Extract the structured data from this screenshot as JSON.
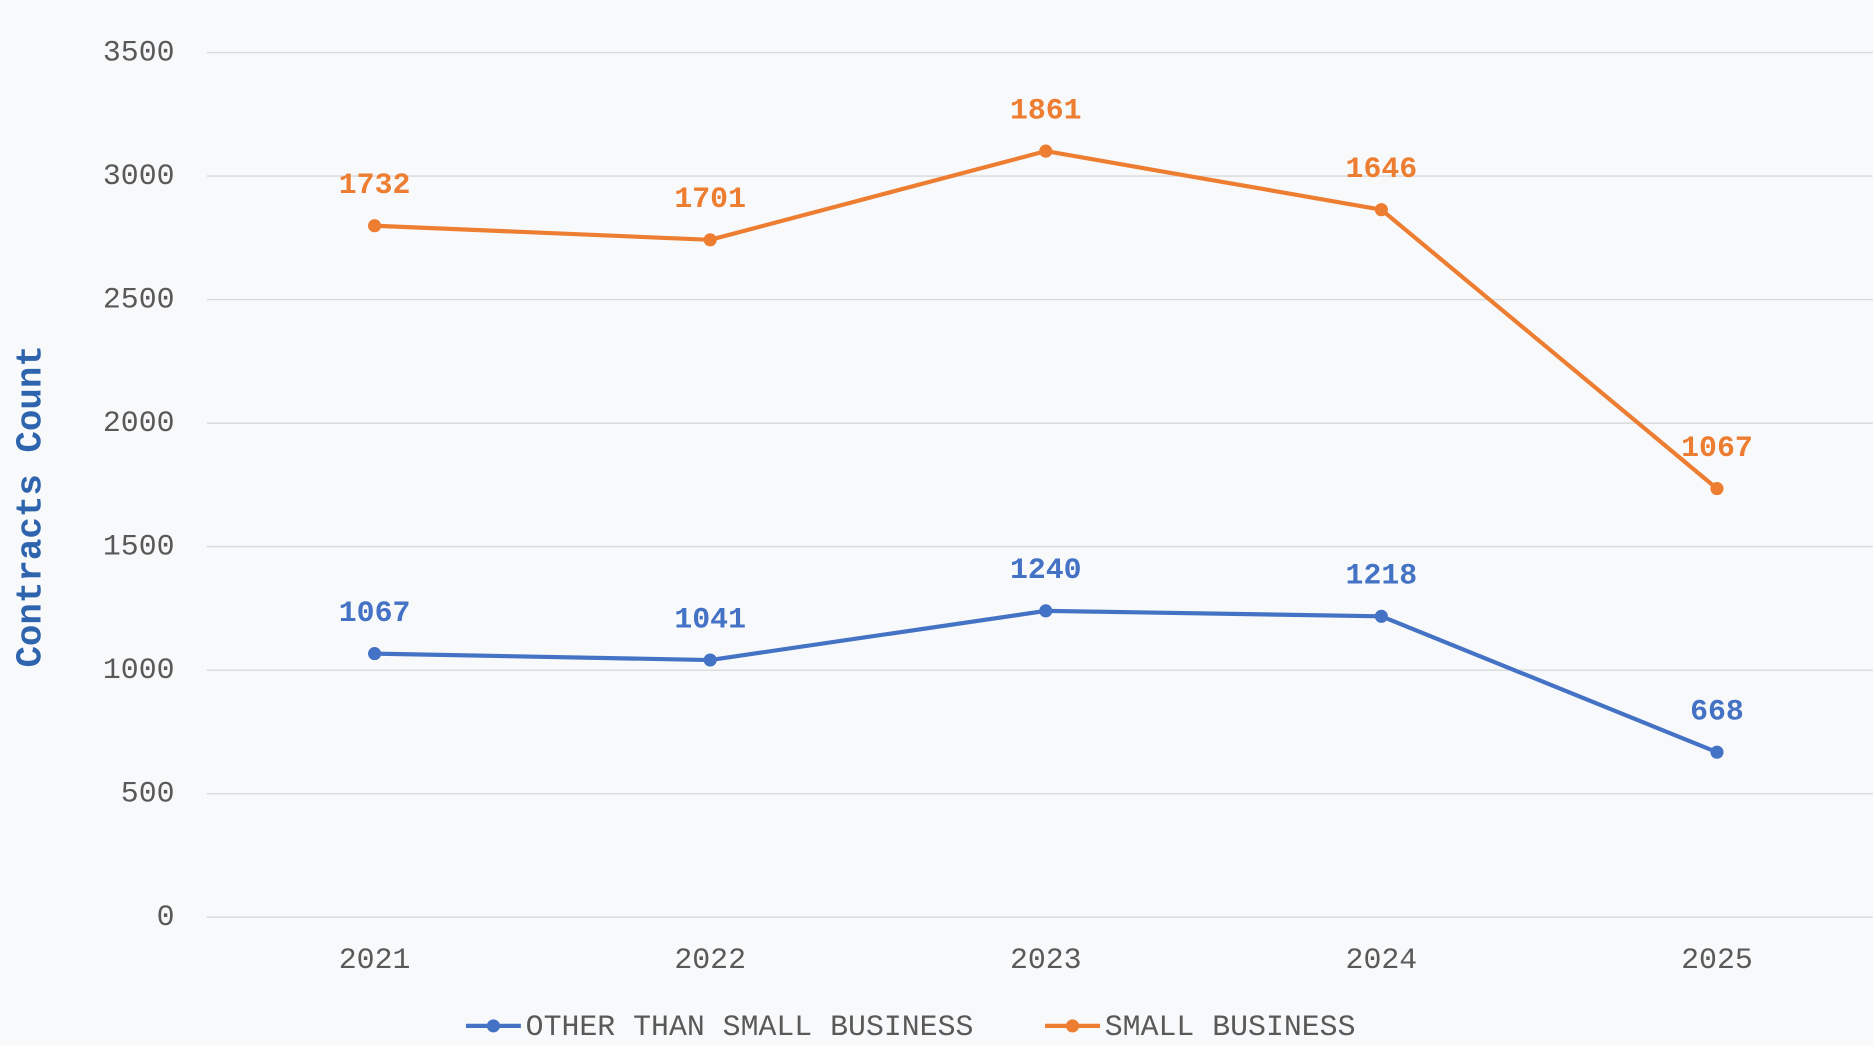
{
  "chart_data": {
    "type": "line",
    "stacked": true,
    "y_label": "Contracts Count",
    "categories": [
      "2021",
      "2022",
      "2023",
      "2024",
      "2025"
    ],
    "series": [
      {
        "name": "OTHER THAN SMALL BUSINESS",
        "color": "#4472c4",
        "values": [
          1067,
          1041,
          1240,
          1218,
          668
        ]
      },
      {
        "name": "SMALL BUSINESS",
        "color": "#ed7d31",
        "values": [
          1732,
          1701,
          1861,
          1646,
          1067
        ]
      }
    ],
    "ylim": [
      0,
      3500
    ],
    "yticks": [
      0,
      500,
      1000,
      1500,
      2000,
      2500,
      3000,
      3500
    ],
    "grid": true,
    "legend": "bottom"
  }
}
